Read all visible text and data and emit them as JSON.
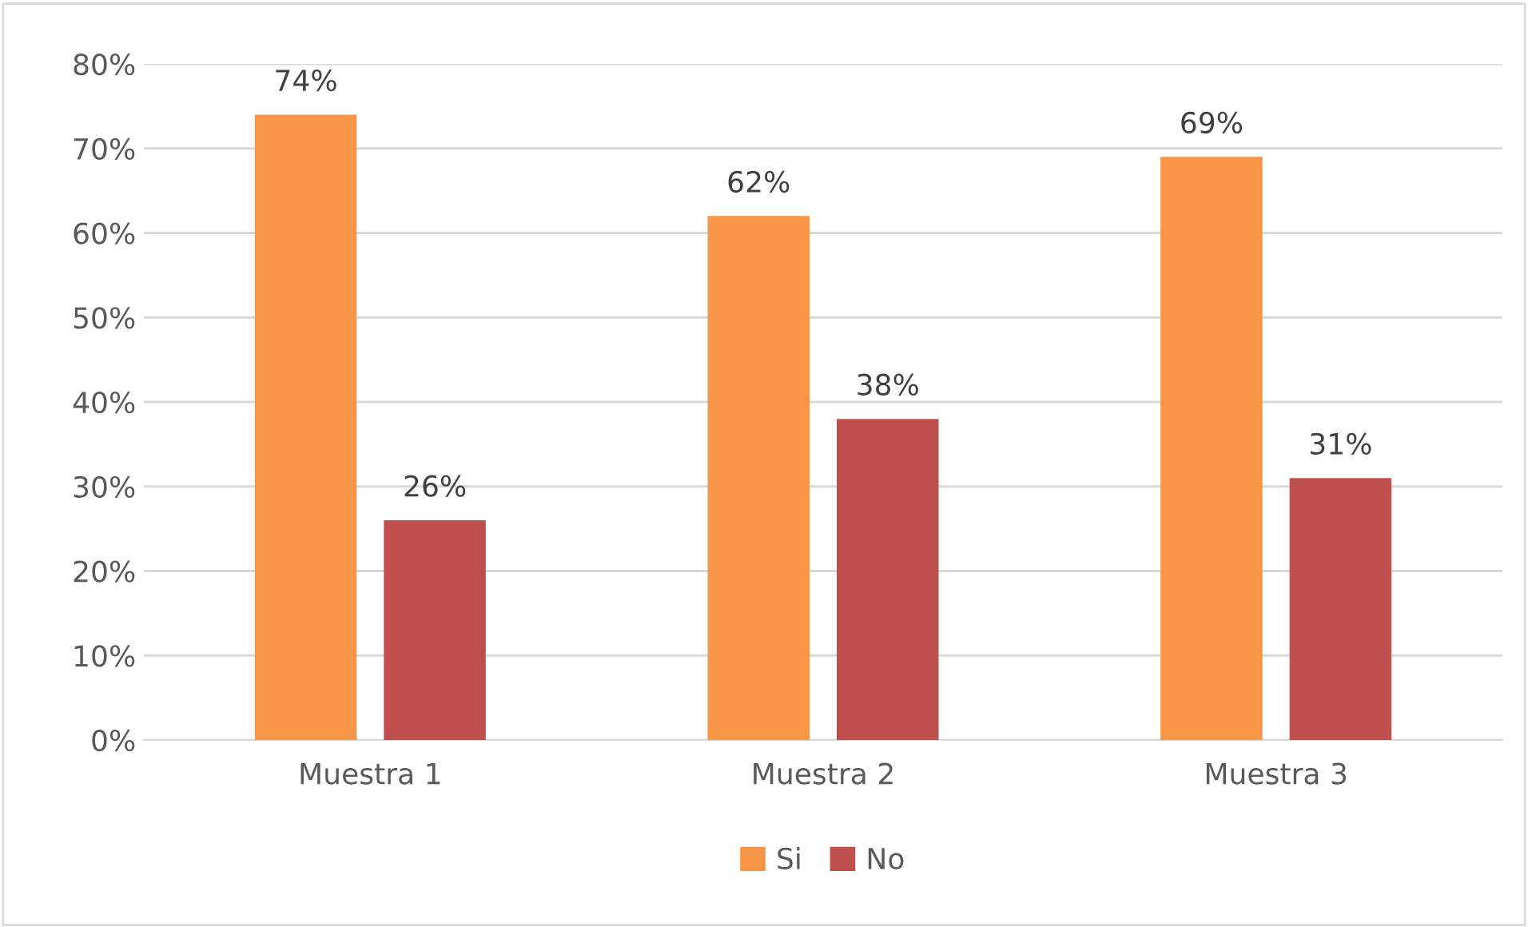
{
  "chart_data": {
    "type": "bar",
    "categories": [
      "Muestra 1",
      "Muestra 2",
      "Muestra 3"
    ],
    "series": [
      {
        "name": "Si",
        "color": "#f79646",
        "values": [
          74,
          62,
          69
        ],
        "value_labels": [
          "74%",
          "62%",
          "69%"
        ]
      },
      {
        "name": "No",
        "color": "#c0504d",
        "values": [
          26,
          38,
          31
        ],
        "value_labels": [
          "26%",
          "38%",
          "31%"
        ]
      }
    ],
    "ylim": [
      0,
      80
    ],
    "yticks": [
      {
        "value": 0,
        "label": "0%"
      },
      {
        "value": 10,
        "label": "10%"
      },
      {
        "value": 20,
        "label": "20%"
      },
      {
        "value": 30,
        "label": "30%"
      },
      {
        "value": 40,
        "label": "40%"
      },
      {
        "value": 50,
        "label": "50%"
      },
      {
        "value": 60,
        "label": "60%"
      },
      {
        "value": 70,
        "label": "70%"
      },
      {
        "value": 80,
        "label": "80%"
      }
    ],
    "grid": "y",
    "legend": "bottom"
  }
}
